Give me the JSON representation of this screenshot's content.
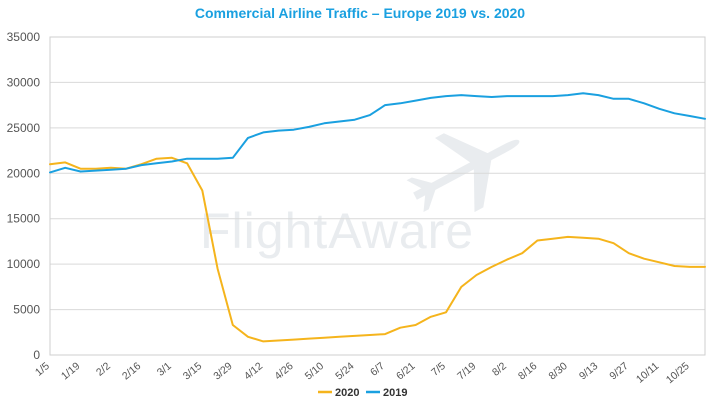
{
  "chart_data": {
    "type": "line",
    "title": "Commercial Airline Traffic – Europe 2019 vs. 2020",
    "watermark": "FlightAware",
    "ylim": [
      0,
      35000
    ],
    "yticks": [
      0,
      5000,
      10000,
      15000,
      20000,
      25000,
      30000,
      35000
    ],
    "xlim": [
      0,
      42
    ],
    "xticks": [
      {
        "week": 0,
        "label": "1/5"
      },
      {
        "week": 2,
        "label": "1/19"
      },
      {
        "week": 4,
        "label": "2/2"
      },
      {
        "week": 6,
        "label": "2/16"
      },
      {
        "week": 8,
        "label": "3/1"
      },
      {
        "week": 10,
        "label": "3/15"
      },
      {
        "week": 12,
        "label": "3/29"
      },
      {
        "week": 14,
        "label": "4/12"
      },
      {
        "week": 16,
        "label": "4/26"
      },
      {
        "week": 18,
        "label": "5/10"
      },
      {
        "week": 20,
        "label": "5/24"
      },
      {
        "week": 22,
        "label": "6/7"
      },
      {
        "week": 24,
        "label": "6/21"
      },
      {
        "week": 26,
        "label": "7/5"
      },
      {
        "week": 28,
        "label": "7/19"
      },
      {
        "week": 30,
        "label": "8/2"
      },
      {
        "week": 32,
        "label": "8/16"
      },
      {
        "week": 34,
        "label": "8/30"
      },
      {
        "week": 36,
        "label": "9/13"
      },
      {
        "week": 38,
        "label": "9/27"
      },
      {
        "week": 40,
        "label": "10/11"
      },
      {
        "week": 42,
        "label": "10/25"
      }
    ],
    "legend": {
      "placement": "bottom-center"
    },
    "grid": {
      "horizontal": true,
      "vertical": false
    },
    "series": [
      {
        "name": "2020",
        "color": "#f5b41c",
        "points": [
          [
            0,
            21000
          ],
          [
            1,
            21200
          ],
          [
            2,
            20500
          ],
          [
            3,
            20500
          ],
          [
            4,
            20600
          ],
          [
            5,
            20500
          ],
          [
            6,
            21000
          ],
          [
            7,
            21600
          ],
          [
            8,
            21700
          ],
          [
            9,
            21100
          ],
          [
            10,
            18100
          ],
          [
            11,
            9500
          ],
          [
            12,
            3300
          ],
          [
            13,
            2000
          ],
          [
            14,
            1500
          ],
          [
            15,
            1600
          ],
          [
            16,
            1700
          ],
          [
            17,
            1800
          ],
          [
            18,
            1900
          ],
          [
            19,
            2000
          ],
          [
            20,
            2100
          ],
          [
            21,
            2200
          ],
          [
            22,
            2300
          ],
          [
            23,
            3000
          ],
          [
            24,
            3300
          ],
          [
            25,
            4200
          ],
          [
            26,
            4700
          ],
          [
            27,
            7500
          ],
          [
            28,
            8800
          ],
          [
            29,
            9700
          ],
          [
            30,
            10500
          ],
          [
            31,
            11200
          ],
          [
            32,
            12600
          ],
          [
            33,
            12800
          ],
          [
            34,
            13000
          ],
          [
            35,
            12900
          ],
          [
            36,
            12800
          ],
          [
            37,
            12300
          ],
          [
            38,
            11200
          ],
          [
            39,
            10600
          ],
          [
            40,
            10200
          ],
          [
            41,
            9800
          ],
          [
            42,
            9700
          ],
          [
            43,
            9700
          ]
        ]
      },
      {
        "name": "2019",
        "color": "#1aa0e0",
        "points": [
          [
            0,
            20100
          ],
          [
            1,
            20600
          ],
          [
            2,
            20200
          ],
          [
            3,
            20300
          ],
          [
            4,
            20400
          ],
          [
            5,
            20500
          ],
          [
            6,
            20900
          ],
          [
            7,
            21100
          ],
          [
            8,
            21300
          ],
          [
            9,
            21600
          ],
          [
            10,
            21600
          ],
          [
            11,
            21600
          ],
          [
            12,
            21700
          ],
          [
            13,
            23900
          ],
          [
            14,
            24500
          ],
          [
            15,
            24700
          ],
          [
            16,
            24800
          ],
          [
            17,
            25100
          ],
          [
            18,
            25500
          ],
          [
            19,
            25700
          ],
          [
            20,
            25900
          ],
          [
            21,
            26400
          ],
          [
            22,
            27500
          ],
          [
            23,
            27700
          ],
          [
            24,
            28000
          ],
          [
            25,
            28300
          ],
          [
            26,
            28500
          ],
          [
            27,
            28600
          ],
          [
            28,
            28500
          ],
          [
            29,
            28400
          ],
          [
            30,
            28500
          ],
          [
            31,
            28500
          ],
          [
            32,
            28500
          ],
          [
            33,
            28500
          ],
          [
            34,
            28600
          ],
          [
            35,
            28800
          ],
          [
            36,
            28600
          ],
          [
            37,
            28200
          ],
          [
            38,
            28200
          ],
          [
            39,
            27700
          ],
          [
            40,
            27100
          ],
          [
            41,
            26600
          ],
          [
            42,
            26300
          ],
          [
            43,
            26000
          ]
        ]
      }
    ]
  }
}
